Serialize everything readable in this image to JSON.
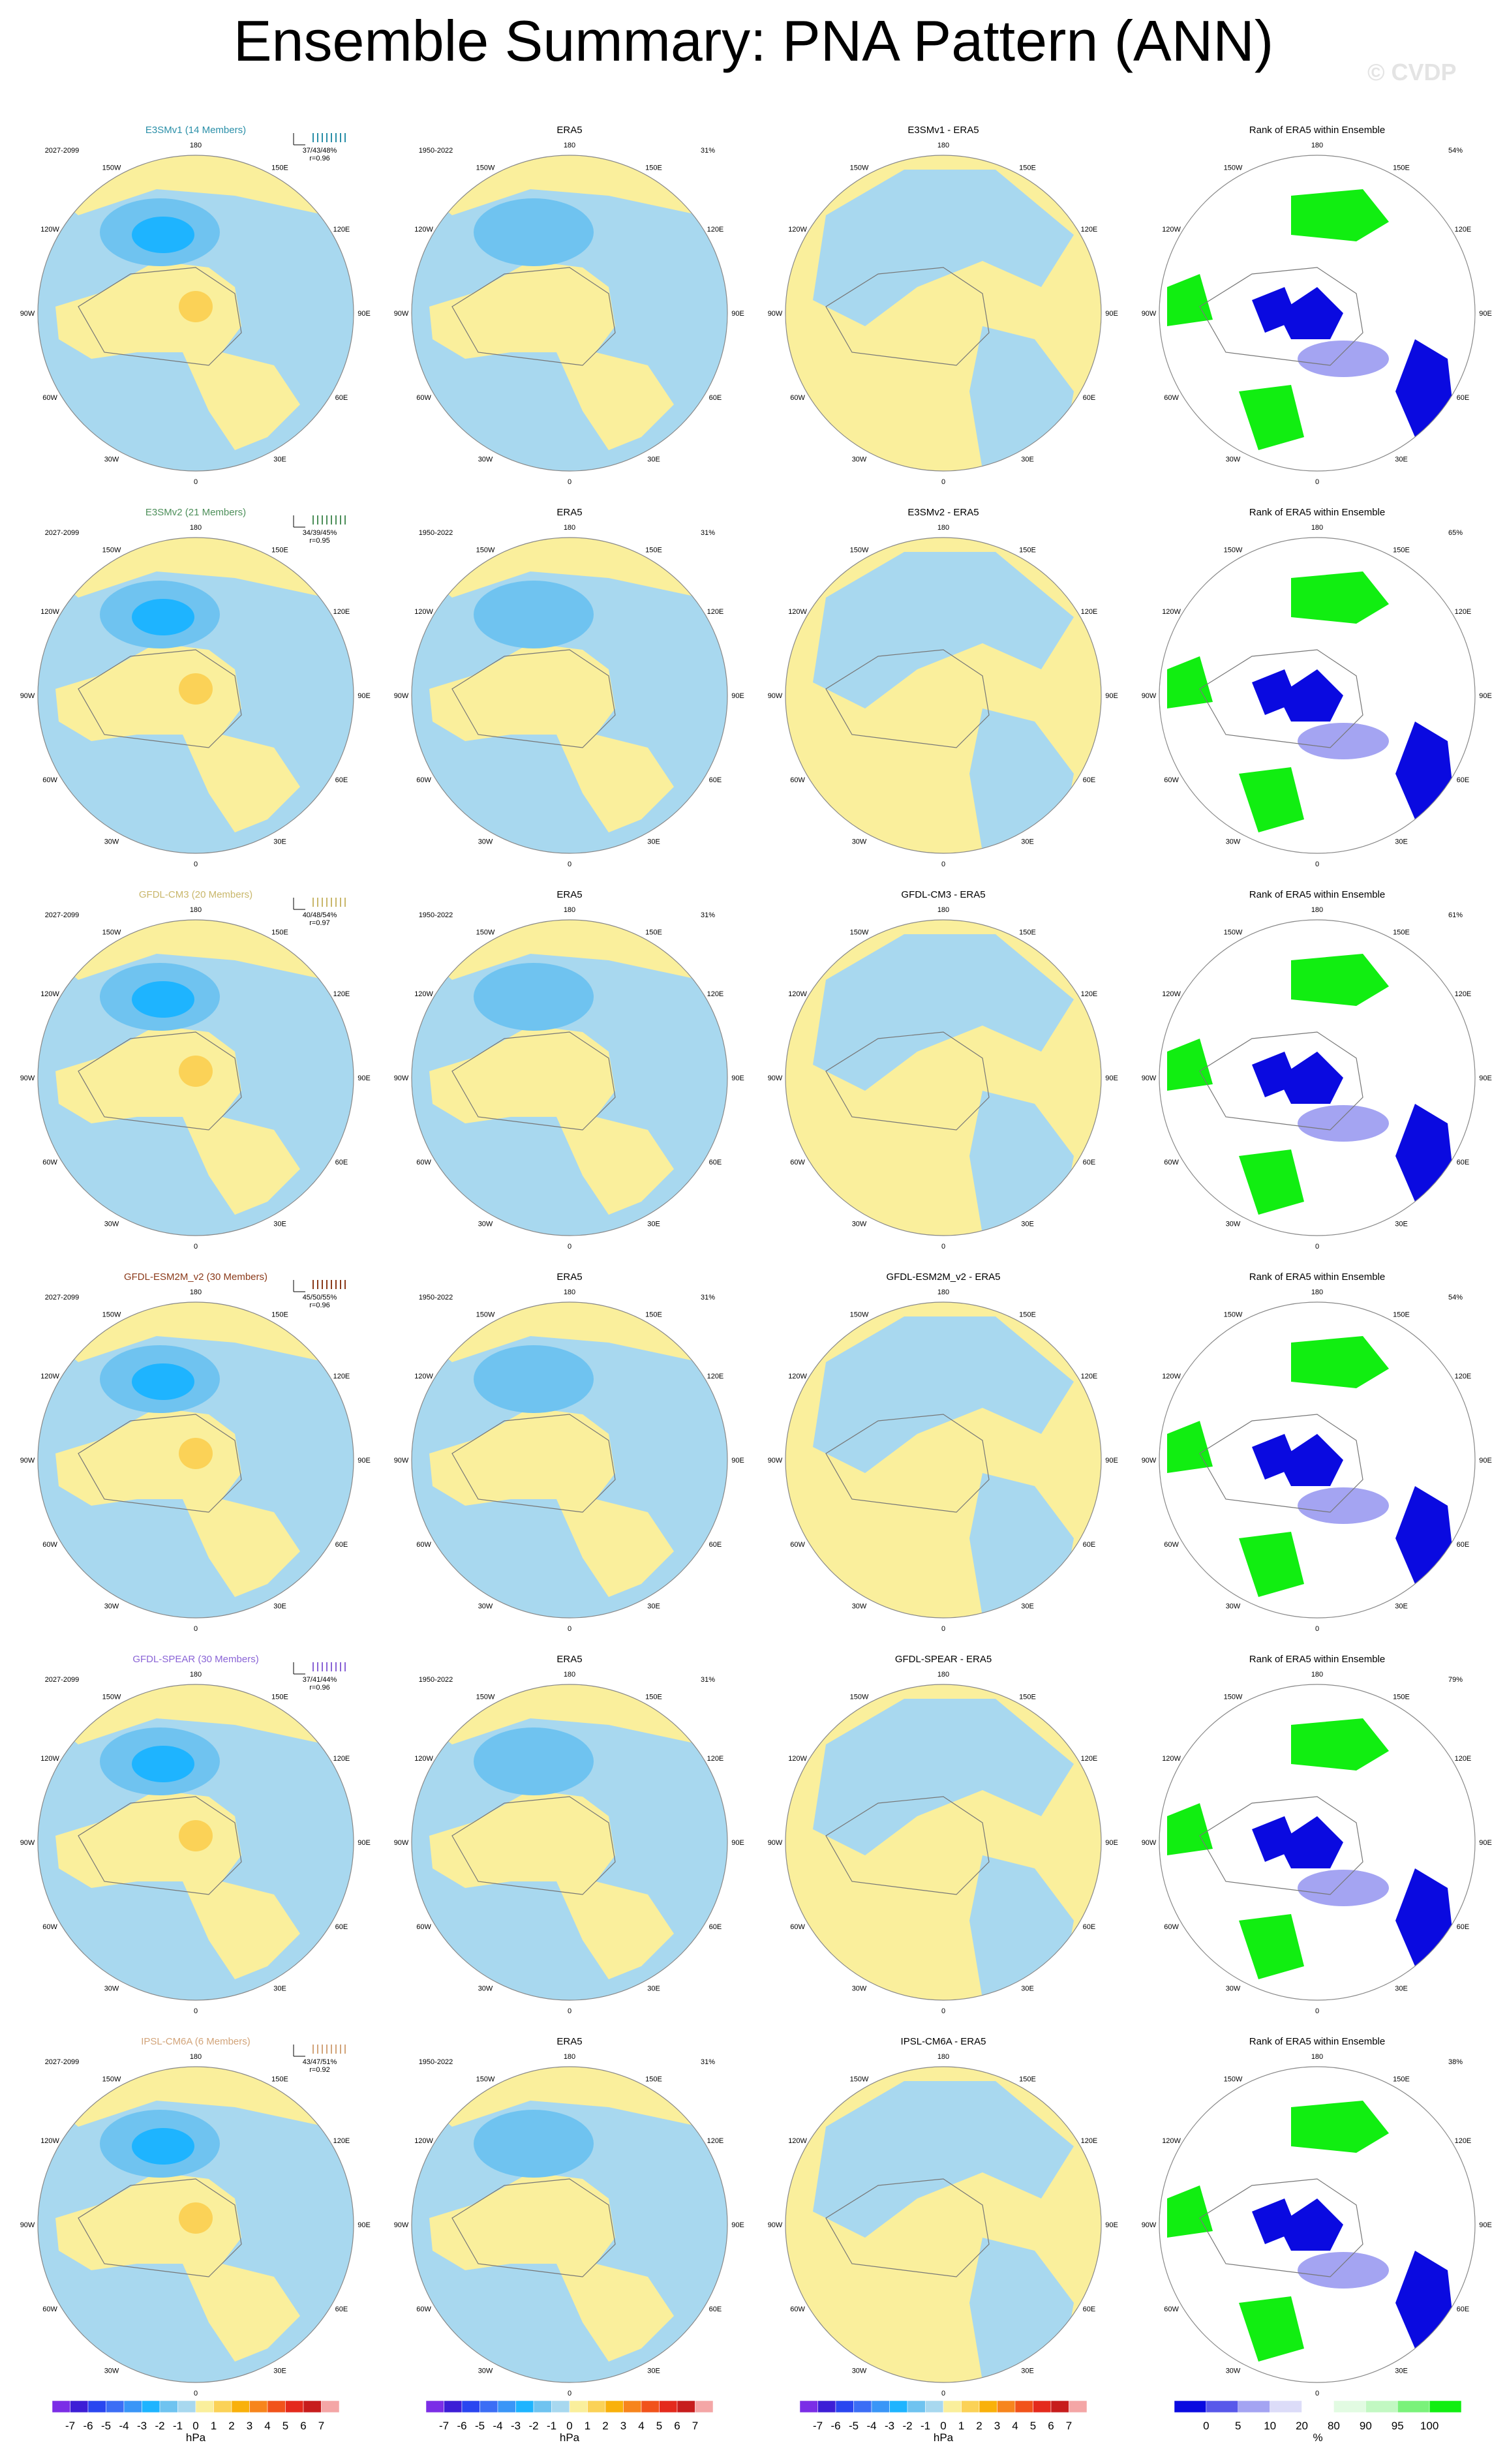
{
  "title": "Ensemble Summary: PNA Pattern (ANN)",
  "copyright": "© CVDP",
  "colors": {
    "neg_light": "#a8d8ef",
    "neg_mid": "#6fc3f0",
    "neg_strong": "#1eb4ff",
    "pos_light": "#faef9c",
    "pos_mid": "#fbd257",
    "coast": "#777777",
    "rank_blue": "#0a0ae0",
    "rank_lblue": "#a4a4f2",
    "rank_green": "#11ee11",
    "rank_lgreen": "#c2f8c2"
  },
  "lon_labels": [
    "180",
    "150E",
    "120E",
    "90E",
    "60E",
    "30E",
    "0",
    "30W",
    "60W",
    "90W",
    "120W",
    "150W"
  ],
  "rows": [
    {
      "model": "E3SMv1 (14 Members)",
      "model_color": "#2a8fa8",
      "period": "2027-2099",
      "pct": "37/43/48%",
      "r": "r=0.96",
      "obs_title": "ERA5",
      "obs_period": "1950-2022",
      "obs_pct": "31%",
      "diff_title": "E3SMv1 - ERA5",
      "rank_title": "Rank of ERA5 within Ensemble",
      "rank_pct": "54%"
    },
    {
      "model": "E3SMv2 (21 Members)",
      "model_color": "#4d8f5a",
      "period": "2027-2099",
      "pct": "34/39/45%",
      "r": "r=0.95",
      "obs_title": "ERA5",
      "obs_period": "1950-2022",
      "obs_pct": "31%",
      "diff_title": "E3SMv2 - ERA5",
      "rank_title": "Rank of ERA5 within Ensemble",
      "rank_pct": "65%"
    },
    {
      "model": "GFDL-CM3 (20 Members)",
      "model_color": "#c9b76b",
      "period": "2027-2099",
      "pct": "40/48/54%",
      "r": "r=0.97",
      "obs_title": "ERA5",
      "obs_period": "1950-2022",
      "obs_pct": "31%",
      "diff_title": "GFDL-CM3 - ERA5",
      "rank_title": "Rank of ERA5 within Ensemble",
      "rank_pct": "61%"
    },
    {
      "model": "GFDL-ESM2M_v2 (30 Members)",
      "model_color": "#8b3a1a",
      "period": "2027-2099",
      "pct": "45/50/55%",
      "r": "r=0.96",
      "obs_title": "ERA5",
      "obs_period": "1950-2022",
      "obs_pct": "31%",
      "diff_title": "GFDL-ESM2M_v2 - ERA5",
      "rank_title": "Rank of ERA5 within Ensemble",
      "rank_pct": "54%"
    },
    {
      "model": "GFDL-SPEAR (30 Members)",
      "model_color": "#8a64d6",
      "period": "2027-2099",
      "pct": "37/41/44%",
      "r": "r=0.96",
      "obs_title": "ERA5",
      "obs_period": "1950-2022",
      "obs_pct": "31%",
      "diff_title": "GFDL-SPEAR - ERA5",
      "rank_title": "Rank of ERA5 within Ensemble",
      "rank_pct": "79%"
    },
    {
      "model": "IPSL-CM6A (6 Members)",
      "model_color": "#d2a47a",
      "period": "2027-2099",
      "pct": "43/47/51%",
      "r": "r=0.92",
      "obs_title": "ERA5",
      "obs_period": "1950-2022",
      "obs_pct": "31%",
      "diff_title": "IPSL-CM6A - ERA5",
      "rank_title": "Rank of ERA5 within Ensemble",
      "rank_pct": "38%"
    }
  ],
  "colorbar_hpa": {
    "labels": [
      "-7",
      "-6",
      "-5",
      "-4",
      "-3",
      "-2",
      "-1",
      "0",
      "1",
      "2",
      "3",
      "4",
      "5",
      "6",
      "7"
    ],
    "colors": [
      "#7b2ee6",
      "#3d1ed6",
      "#2a46f0",
      "#3c6ef5",
      "#3a96f7",
      "#1eb4ff",
      "#6fc3f0",
      "#a8d8ef",
      "#faef9c",
      "#fbd257",
      "#f9b10b",
      "#f7851d",
      "#f1531b",
      "#e42a1d",
      "#c71d1d",
      "#f4a6a6"
    ],
    "unit": "hPa"
  },
  "colorbar_rank": {
    "labels": [
      "0",
      "5",
      "10",
      "20",
      "80",
      "90",
      "95",
      "100"
    ],
    "colors": [
      "#0a0ae0",
      "#5858ea",
      "#a4a4f2",
      "#dcdcf8",
      "#ffffff",
      "#e2fbe2",
      "#c2f8c2",
      "#7af27a",
      "#11ee11"
    ],
    "unit": "%"
  },
  "chart_data": {
    "type": "heatmap",
    "projection": "north polar stereographic",
    "panels_per_row": [
      "model ensemble mean",
      "ERA5 (1950-2022)",
      "model minus ERA5",
      "rank of ERA5 within ensemble"
    ],
    "rows": [
      "E3SMv1 (14 Members)",
      "E3SMv2 (21 Members)",
      "GFDL-CM3 (20 Members)",
      "GFDL-ESM2M_v2 (30 Members)",
      "GFDL-SPEAR (30 Members)",
      "IPSL-CM6A (6 Members)"
    ],
    "pct_variance_explained": [
      "37/43/48%",
      "34/39/45%",
      "40/48/54%",
      "45/50/55%",
      "37/41/44%",
      "43/47/51%"
    ],
    "pattern_correlation": [
      0.96,
      0.95,
      0.97,
      0.96,
      0.96,
      0.92
    ],
    "obs_pct_variance_explained": "31%",
    "rank_pct": [
      "54%",
      "65%",
      "61%",
      "54%",
      "79%",
      "38%"
    ],
    "hpa_levels": [
      -7,
      -6,
      -5,
      -4,
      -3,
      -2,
      -1,
      0,
      1,
      2,
      3,
      4,
      5,
      6,
      7
    ],
    "rank_levels": [
      0,
      5,
      10,
      20,
      80,
      90,
      95,
      100
    ],
    "units": [
      "hPa",
      "%"
    ]
  }
}
